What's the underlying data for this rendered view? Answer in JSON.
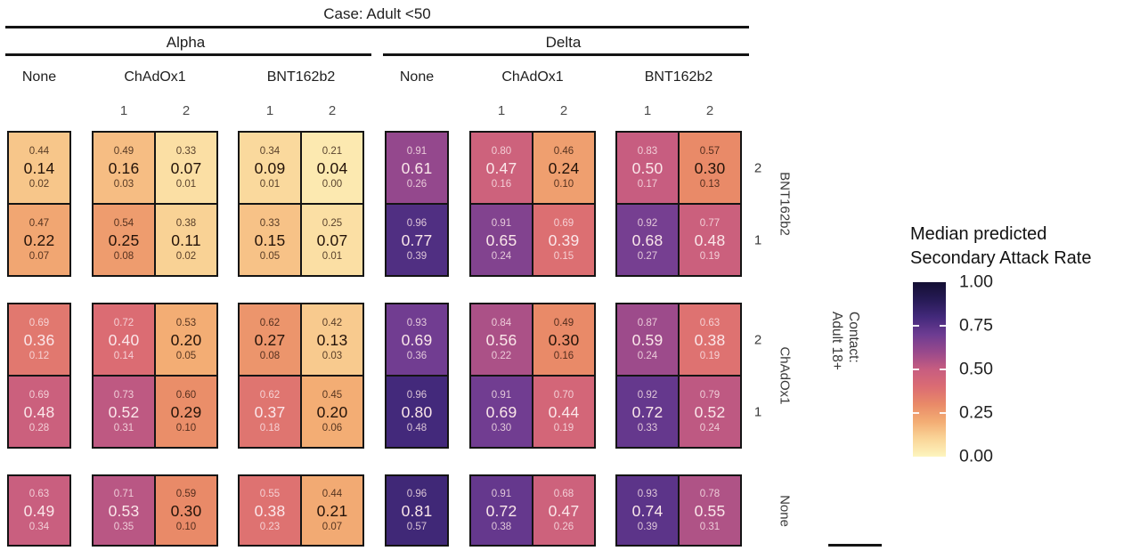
{
  "title": "Case: Adult <50",
  "legend": {
    "title_line1": "Median predicted",
    "title_line2": "Secondary Attack Rate",
    "ticks": [
      {
        "label": "1.00",
        "value": 1.0
      },
      {
        "label": "0.75",
        "value": 0.75
      },
      {
        "label": "0.50",
        "value": 0.5
      },
      {
        "label": "0.25",
        "value": 0.25
      },
      {
        "label": "0.00",
        "value": 0.0
      }
    ]
  },
  "colors": {
    "background": "#ffffff",
    "cell_border": "#141414",
    "dark_text_median": "#241309",
    "dark_text_interval": "rgba(40,18,8,0.78)",
    "light_text_median": "#fbe7ea",
    "light_text_interval": "rgba(251,231,234,0.82)"
  },
  "chart_data": {
    "type": "heatmap",
    "title": "Case: Adult <50",
    "legend_label": "Median predicted Secondary Attack Rate",
    "value_range": [
      0,
      1
    ],
    "cell_value_order": [
      "upper",
      "median",
      "lower"
    ],
    "case_axis": {
      "variants": [
        {
          "label": "Alpha",
          "vaccines": [
            {
              "label": "None",
              "doses": []
            },
            {
              "label": "ChAdOx1",
              "doses": [
                "1",
                "2"
              ]
            },
            {
              "label": "BNT162b2",
              "doses": [
                "1",
                "2"
              ]
            }
          ]
        },
        {
          "label": "Delta",
          "vaccines": [
            {
              "label": "None",
              "doses": []
            },
            {
              "label": "ChAdOx1",
              "doses": [
                "1",
                "2"
              ]
            },
            {
              "label": "BNT162b2",
              "doses": [
                "1",
                "2"
              ]
            }
          ]
        }
      ]
    },
    "columns": [
      {
        "variant": "Alpha",
        "vaccine": "None",
        "dose": ""
      },
      {
        "variant": "Alpha",
        "vaccine": "ChAdOx1",
        "dose": "1"
      },
      {
        "variant": "Alpha",
        "vaccine": "ChAdOx1",
        "dose": "2"
      },
      {
        "variant": "Alpha",
        "vaccine": "BNT162b2",
        "dose": "1"
      },
      {
        "variant": "Alpha",
        "vaccine": "BNT162b2",
        "dose": "2"
      },
      {
        "variant": "Delta",
        "vaccine": "None",
        "dose": ""
      },
      {
        "variant": "Delta",
        "vaccine": "ChAdOx1",
        "dose": "1"
      },
      {
        "variant": "Delta",
        "vaccine": "ChAdOx1",
        "dose": "2"
      },
      {
        "variant": "Delta",
        "vaccine": "BNT162b2",
        "dose": "1"
      },
      {
        "variant": "Delta",
        "vaccine": "BNT162b2",
        "dose": "2"
      }
    ],
    "contact_axis": {
      "title_line1": "Contact:",
      "title_line2": "Adult 18+",
      "groups": [
        {
          "label": "BNT162b2",
          "doses": [
            "2",
            "1"
          ]
        },
        {
          "label": "ChAdOx1",
          "doses": [
            "2",
            "1"
          ]
        },
        {
          "label": "None",
          "doses": []
        }
      ]
    },
    "rows": [
      {
        "contact_vaccine": "BNT162b2",
        "dose": "2",
        "cells": [
          [
            0.44,
            0.14,
            0.02
          ],
          [
            0.49,
            0.16,
            0.03
          ],
          [
            0.33,
            0.07,
            0.01
          ],
          [
            0.34,
            0.09,
            0.01
          ],
          [
            0.21,
            0.04,
            0.0
          ],
          [
            0.91,
            0.61,
            0.26
          ],
          [
            0.8,
            0.47,
            0.16
          ],
          [
            0.46,
            0.24,
            0.1
          ],
          [
            0.83,
            0.5,
            0.17
          ],
          [
            0.57,
            0.3,
            0.13
          ]
        ]
      },
      {
        "contact_vaccine": "BNT162b2",
        "dose": "1",
        "cells": [
          [
            0.47,
            0.22,
            0.07
          ],
          [
            0.54,
            0.25,
            0.08
          ],
          [
            0.38,
            0.11,
            0.02
          ],
          [
            0.33,
            0.15,
            0.05
          ],
          [
            0.25,
            0.07,
            0.01
          ],
          [
            0.96,
            0.77,
            0.39
          ],
          [
            0.91,
            0.65,
            0.24
          ],
          [
            0.69,
            0.39,
            0.15
          ],
          [
            0.92,
            0.68,
            0.27
          ],
          [
            0.77,
            0.48,
            0.19
          ]
        ]
      },
      {
        "contact_vaccine": "ChAdOx1",
        "dose": "2",
        "cells": [
          [
            0.69,
            0.36,
            0.12
          ],
          [
            0.72,
            0.4,
            0.14
          ],
          [
            0.53,
            0.2,
            0.05
          ],
          [
            0.62,
            0.27,
            0.08
          ],
          [
            0.42,
            0.13,
            0.03
          ],
          [
            0.93,
            0.69,
            0.36
          ],
          [
            0.84,
            0.56,
            0.22
          ],
          [
            0.49,
            0.3,
            0.16
          ],
          [
            0.87,
            0.59,
            0.24
          ],
          [
            0.63,
            0.38,
            0.19
          ]
        ]
      },
      {
        "contact_vaccine": "ChAdOx1",
        "dose": "1",
        "cells": [
          [
            0.69,
            0.48,
            0.28
          ],
          [
            0.73,
            0.52,
            0.31
          ],
          [
            0.6,
            0.29,
            0.1
          ],
          [
            0.62,
            0.37,
            0.18
          ],
          [
            0.45,
            0.2,
            0.06
          ],
          [
            0.96,
            0.8,
            0.48
          ],
          [
            0.91,
            0.69,
            0.3
          ],
          [
            0.7,
            0.44,
            0.19
          ],
          [
            0.92,
            0.72,
            0.33
          ],
          [
            0.79,
            0.52,
            0.24
          ]
        ]
      },
      {
        "contact_vaccine": "None",
        "dose": "",
        "cells": [
          [
            0.63,
            0.49,
            0.34
          ],
          [
            0.71,
            0.53,
            0.35
          ],
          [
            0.59,
            0.3,
            0.1
          ],
          [
            0.55,
            0.38,
            0.23
          ],
          [
            0.44,
            0.21,
            0.07
          ],
          [
            0.96,
            0.81,
            0.57
          ],
          [
            0.91,
            0.72,
            0.38
          ],
          [
            0.68,
            0.47,
            0.26
          ],
          [
            0.93,
            0.74,
            0.39
          ],
          [
            0.78,
            0.55,
            0.31
          ]
        ]
      }
    ],
    "colormap": {
      "stops": [
        {
          "value": 0.0,
          "color": "#fdf5bf"
        },
        {
          "value": 0.1,
          "color": "#fad699"
        },
        {
          "value": 0.2,
          "color": "#f3ad74"
        },
        {
          "value": 0.3,
          "color": "#e98a68"
        },
        {
          "value": 0.4,
          "color": "#db6c73"
        },
        {
          "value": 0.5,
          "color": "#c75d80"
        },
        {
          "value": 0.6,
          "color": "#98498c"
        },
        {
          "value": 0.7,
          "color": "#6d3c92"
        },
        {
          "value": 0.8,
          "color": "#43297b"
        },
        {
          "value": 0.9,
          "color": "#261a55"
        },
        {
          "value": 1.0,
          "color": "#140f33"
        }
      ]
    }
  }
}
